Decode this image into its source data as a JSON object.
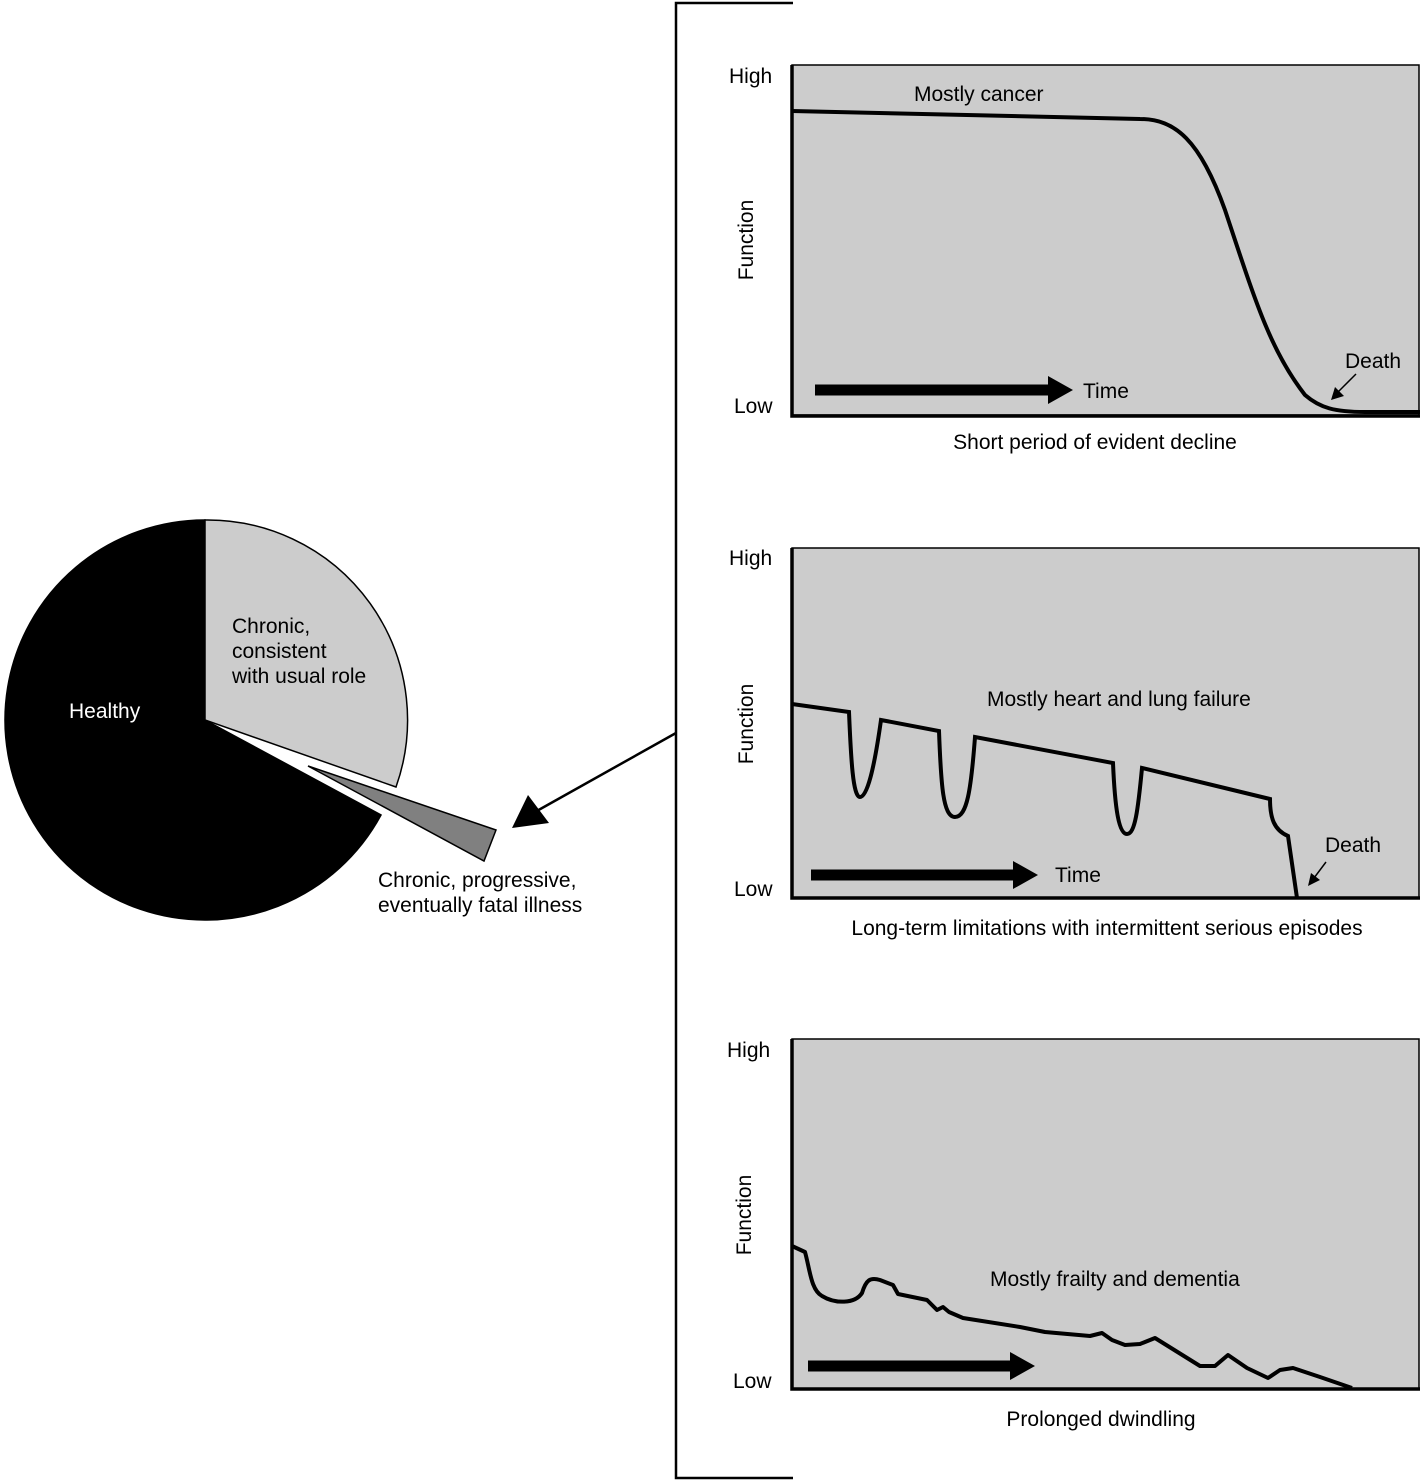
{
  "pie": {
    "segments": [
      {
        "label": "Healthy",
        "color": "#000000",
        "label_color": "#ffffff"
      },
      {
        "label_lines": [
          "Chronic,",
          "consistent",
          "with usual role"
        ],
        "color": "#cccccc",
        "label_color": "#000000"
      },
      {
        "label_lines": [
          "Chronic, progressive,",
          "eventually fatal illness"
        ],
        "color": "#808080",
        "label_color": "#000000",
        "exploded": true
      }
    ]
  },
  "panels": [
    {
      "y_high": "High",
      "y_low": "Low",
      "y_axis": "Function",
      "annotation": "Mostly cancer",
      "time_label": "Time",
      "death_label": "Death",
      "caption": "Short period of evident decline",
      "background": "#cccccc"
    },
    {
      "y_high": "High",
      "y_low": "Low",
      "y_axis": "Function",
      "annotation": "Mostly heart and lung failure",
      "time_label": "Time",
      "death_label": "Death",
      "caption": "Long-term limitations with intermittent serious episodes",
      "background": "#cccccc"
    },
    {
      "y_high": "High",
      "y_low": "Low",
      "y_axis": "Function",
      "annotation": "Mostly frailty and dementia",
      "caption": "Prolonged dwindling",
      "background": "#cccccc"
    }
  ]
}
